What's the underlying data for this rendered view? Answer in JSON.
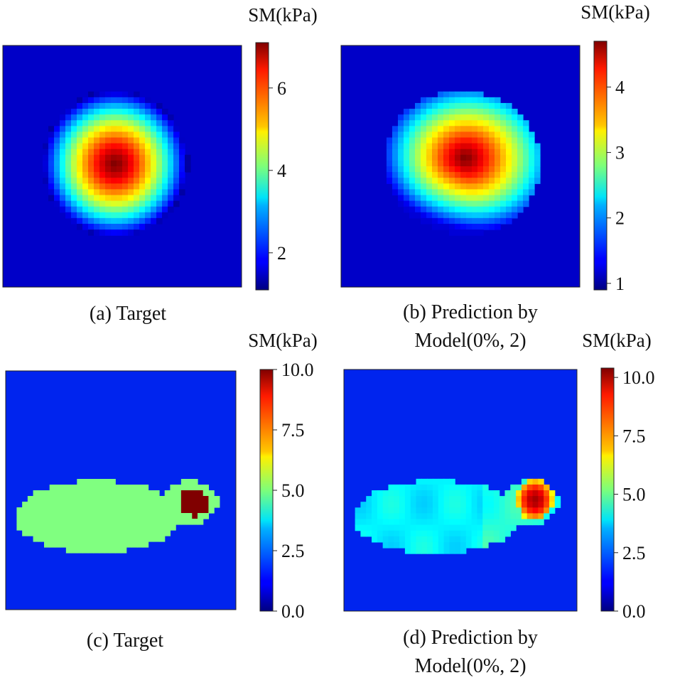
{
  "chart_data": [
    {
      "type": "heatmap",
      "panel": "a",
      "caption": [
        "(a) Target"
      ],
      "colorbar": {
        "title": "SM(kPa)",
        "range": [
          1.1,
          7.1
        ],
        "ticks": [
          2,
          4,
          6
        ],
        "tick_labels": [
          "2",
          "4",
          "6"
        ]
      },
      "field": {
        "shape": "circle",
        "center": [
          0.47,
          0.49
        ],
        "radius": 0.305,
        "min": 1.1,
        "max": 7.1
      }
    },
    {
      "type": "heatmap",
      "panel": "b",
      "caption": [
        "(b) Prediction by",
        "Model(0%, 2)"
      ],
      "colorbar": {
        "title": "SM(kPa)",
        "range": [
          0.9,
          4.7
        ],
        "ticks": [
          1,
          2,
          3,
          4
        ],
        "tick_labels": [
          "1",
          "2",
          "3",
          "4"
        ]
      },
      "field": {
        "shape": "blob",
        "center": [
          0.49,
          0.495
        ],
        "radius": 0.31,
        "min": 0.9,
        "max": 4.7
      }
    },
    {
      "type": "heatmap",
      "panel": "c",
      "caption": [
        "(c) Target"
      ],
      "colorbar": {
        "title": "SM(kPa)",
        "range": [
          0,
          10
        ],
        "ticks": [
          0,
          2.5,
          5,
          7.5,
          10
        ],
        "tick_labels": [
          "0.0",
          "2.5",
          "5.0",
          "7.5",
          "10.0"
        ]
      },
      "field": {
        "shape": "inclusion",
        "background": 1.0,
        "body": 5.0,
        "inclusion": 10.0
      }
    },
    {
      "type": "heatmap",
      "panel": "d",
      "caption": [
        "(d) Prediction by",
        "Model(0%, 2)"
      ],
      "colorbar": {
        "title": "SM(kPa)",
        "range": [
          0,
          10.4
        ],
        "ticks": [
          0,
          2.5,
          5,
          7.5,
          10
        ],
        "tick_labels": [
          "0.0",
          "2.5",
          "5.0",
          "7.5",
          "10.0"
        ]
      },
      "field": {
        "shape": "inclusion-pred",
        "background": 1.0,
        "body": 3.8,
        "inclusion": 10.0
      }
    }
  ]
}
